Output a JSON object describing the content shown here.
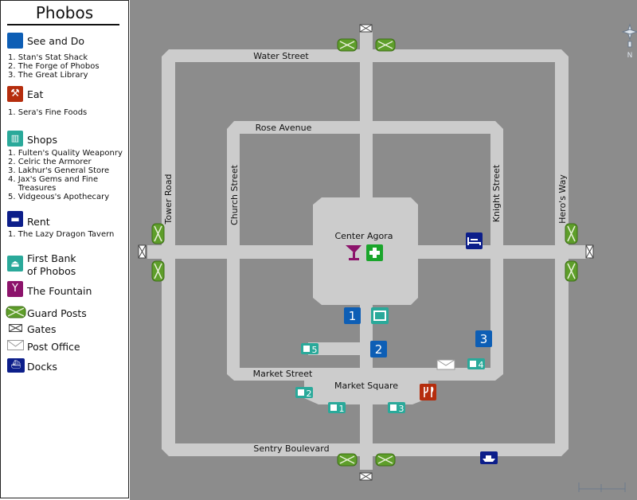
{
  "title": "Phobos",
  "legend": {
    "see_and_do": {
      "label": "See and Do",
      "items": [
        "1. Stan's Stat Shack",
        "2. The Forge of Phobos",
        "3. The Great Library"
      ]
    },
    "eat": {
      "label": "Eat",
      "items": [
        "1. Sera's Fine Foods"
      ]
    },
    "shops": {
      "label": "Shops",
      "items": [
        "1. Fulten's Quality Weaponry",
        "2. Celric the Armorer",
        "3. Lakhur's General Store",
        "4. Jax's Gems and Fine",
        "    Treasures",
        "5. Vidgeous's Apothecary"
      ]
    },
    "rent": {
      "label": "Rent",
      "items": [
        "1. The Lazy Dragon Tavern"
      ]
    },
    "bank": {
      "label_line1": "First Bank",
      "label_line2": "of Phobos"
    },
    "fountain": {
      "label": "The Fountain"
    },
    "guard_posts": {
      "label": "Guard Posts"
    },
    "gates": {
      "label": "Gates"
    },
    "post_office": {
      "label": "Post Office"
    },
    "docks": {
      "label": "Docks"
    }
  },
  "map": {
    "streets": {
      "water": "Water Street",
      "rose": "Rose Avenue",
      "tower": "Tower Road",
      "church": "Church Street",
      "knight": "Knight Street",
      "heros": "Hero's Way",
      "market_street": "Market Street",
      "market_square": "Market Square",
      "sentry": "Sentry Boulevard",
      "agora": "Center Agora"
    },
    "markers": {
      "see1": "1",
      "see2": "2",
      "see3": "3",
      "shop1": "1",
      "shop2": "2",
      "shop3": "3",
      "shop4": "4",
      "shop5": "5"
    },
    "compass": "N",
    "colors": {
      "background": "#8c8c8c",
      "road": "#cccccc",
      "see_and_do": "#0d5eb5",
      "eat": "#b52d0d",
      "shops": "#2aa99a",
      "rent": "#0c1e8a",
      "fountain": "#8c136b",
      "guard": "#5e9e2a",
      "health": "#1aa52b"
    }
  }
}
